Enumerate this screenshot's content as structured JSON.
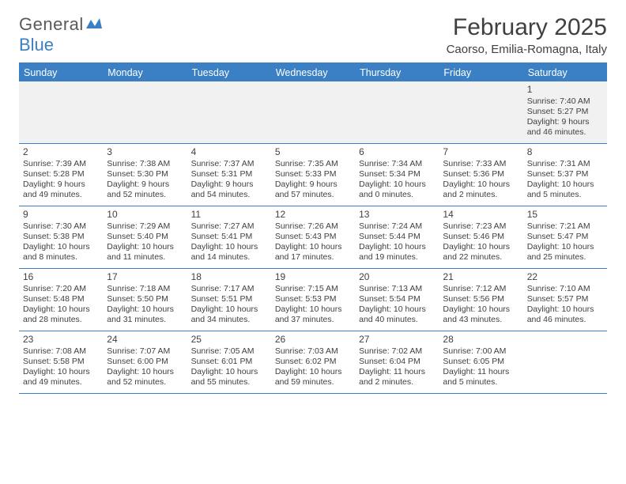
{
  "brand": {
    "part1": "General",
    "part2": "Blue"
  },
  "title": "February 2025",
  "location": "Caorso, Emilia-Romagna, Italy",
  "colors": {
    "accent": "#3b7fc4",
    "text": "#404040",
    "faint_bg": "#f1f1f1",
    "background": "#ffffff"
  },
  "calendar": {
    "daysOfWeek": [
      "Sunday",
      "Monday",
      "Tuesday",
      "Wednesday",
      "Thursday",
      "Friday",
      "Saturday"
    ],
    "weeks": [
      [
        null,
        null,
        null,
        null,
        null,
        null,
        {
          "n": "1",
          "sr": "Sunrise: 7:40 AM",
          "ss": "Sunset: 5:27 PM",
          "d1": "Daylight: 9 hours",
          "d2": "and 46 minutes."
        }
      ],
      [
        {
          "n": "2",
          "sr": "Sunrise: 7:39 AM",
          "ss": "Sunset: 5:28 PM",
          "d1": "Daylight: 9 hours",
          "d2": "and 49 minutes."
        },
        {
          "n": "3",
          "sr": "Sunrise: 7:38 AM",
          "ss": "Sunset: 5:30 PM",
          "d1": "Daylight: 9 hours",
          "d2": "and 52 minutes."
        },
        {
          "n": "4",
          "sr": "Sunrise: 7:37 AM",
          "ss": "Sunset: 5:31 PM",
          "d1": "Daylight: 9 hours",
          "d2": "and 54 minutes."
        },
        {
          "n": "5",
          "sr": "Sunrise: 7:35 AM",
          "ss": "Sunset: 5:33 PM",
          "d1": "Daylight: 9 hours",
          "d2": "and 57 minutes."
        },
        {
          "n": "6",
          "sr": "Sunrise: 7:34 AM",
          "ss": "Sunset: 5:34 PM",
          "d1": "Daylight: 10 hours",
          "d2": "and 0 minutes."
        },
        {
          "n": "7",
          "sr": "Sunrise: 7:33 AM",
          "ss": "Sunset: 5:36 PM",
          "d1": "Daylight: 10 hours",
          "d2": "and 2 minutes."
        },
        {
          "n": "8",
          "sr": "Sunrise: 7:31 AM",
          "ss": "Sunset: 5:37 PM",
          "d1": "Daylight: 10 hours",
          "d2": "and 5 minutes."
        }
      ],
      [
        {
          "n": "9",
          "sr": "Sunrise: 7:30 AM",
          "ss": "Sunset: 5:38 PM",
          "d1": "Daylight: 10 hours",
          "d2": "and 8 minutes."
        },
        {
          "n": "10",
          "sr": "Sunrise: 7:29 AM",
          "ss": "Sunset: 5:40 PM",
          "d1": "Daylight: 10 hours",
          "d2": "and 11 minutes."
        },
        {
          "n": "11",
          "sr": "Sunrise: 7:27 AM",
          "ss": "Sunset: 5:41 PM",
          "d1": "Daylight: 10 hours",
          "d2": "and 14 minutes."
        },
        {
          "n": "12",
          "sr": "Sunrise: 7:26 AM",
          "ss": "Sunset: 5:43 PM",
          "d1": "Daylight: 10 hours",
          "d2": "and 17 minutes."
        },
        {
          "n": "13",
          "sr": "Sunrise: 7:24 AM",
          "ss": "Sunset: 5:44 PM",
          "d1": "Daylight: 10 hours",
          "d2": "and 19 minutes."
        },
        {
          "n": "14",
          "sr": "Sunrise: 7:23 AM",
          "ss": "Sunset: 5:46 PM",
          "d1": "Daylight: 10 hours",
          "d2": "and 22 minutes."
        },
        {
          "n": "15",
          "sr": "Sunrise: 7:21 AM",
          "ss": "Sunset: 5:47 PM",
          "d1": "Daylight: 10 hours",
          "d2": "and 25 minutes."
        }
      ],
      [
        {
          "n": "16",
          "sr": "Sunrise: 7:20 AM",
          "ss": "Sunset: 5:48 PM",
          "d1": "Daylight: 10 hours",
          "d2": "and 28 minutes."
        },
        {
          "n": "17",
          "sr": "Sunrise: 7:18 AM",
          "ss": "Sunset: 5:50 PM",
          "d1": "Daylight: 10 hours",
          "d2": "and 31 minutes."
        },
        {
          "n": "18",
          "sr": "Sunrise: 7:17 AM",
          "ss": "Sunset: 5:51 PM",
          "d1": "Daylight: 10 hours",
          "d2": "and 34 minutes."
        },
        {
          "n": "19",
          "sr": "Sunrise: 7:15 AM",
          "ss": "Sunset: 5:53 PM",
          "d1": "Daylight: 10 hours",
          "d2": "and 37 minutes."
        },
        {
          "n": "20",
          "sr": "Sunrise: 7:13 AM",
          "ss": "Sunset: 5:54 PM",
          "d1": "Daylight: 10 hours",
          "d2": "and 40 minutes."
        },
        {
          "n": "21",
          "sr": "Sunrise: 7:12 AM",
          "ss": "Sunset: 5:56 PM",
          "d1": "Daylight: 10 hours",
          "d2": "and 43 minutes."
        },
        {
          "n": "22",
          "sr": "Sunrise: 7:10 AM",
          "ss": "Sunset: 5:57 PM",
          "d1": "Daylight: 10 hours",
          "d2": "and 46 minutes."
        }
      ],
      [
        {
          "n": "23",
          "sr": "Sunrise: 7:08 AM",
          "ss": "Sunset: 5:58 PM",
          "d1": "Daylight: 10 hours",
          "d2": "and 49 minutes."
        },
        {
          "n": "24",
          "sr": "Sunrise: 7:07 AM",
          "ss": "Sunset: 6:00 PM",
          "d1": "Daylight: 10 hours",
          "d2": "and 52 minutes."
        },
        {
          "n": "25",
          "sr": "Sunrise: 7:05 AM",
          "ss": "Sunset: 6:01 PM",
          "d1": "Daylight: 10 hours",
          "d2": "and 55 minutes."
        },
        {
          "n": "26",
          "sr": "Sunrise: 7:03 AM",
          "ss": "Sunset: 6:02 PM",
          "d1": "Daylight: 10 hours",
          "d2": "and 59 minutes."
        },
        {
          "n": "27",
          "sr": "Sunrise: 7:02 AM",
          "ss": "Sunset: 6:04 PM",
          "d1": "Daylight: 11 hours",
          "d2": "and 2 minutes."
        },
        {
          "n": "28",
          "sr": "Sunrise: 7:00 AM",
          "ss": "Sunset: 6:05 PM",
          "d1": "Daylight: 11 hours",
          "d2": "and 5 minutes."
        },
        null
      ]
    ]
  }
}
